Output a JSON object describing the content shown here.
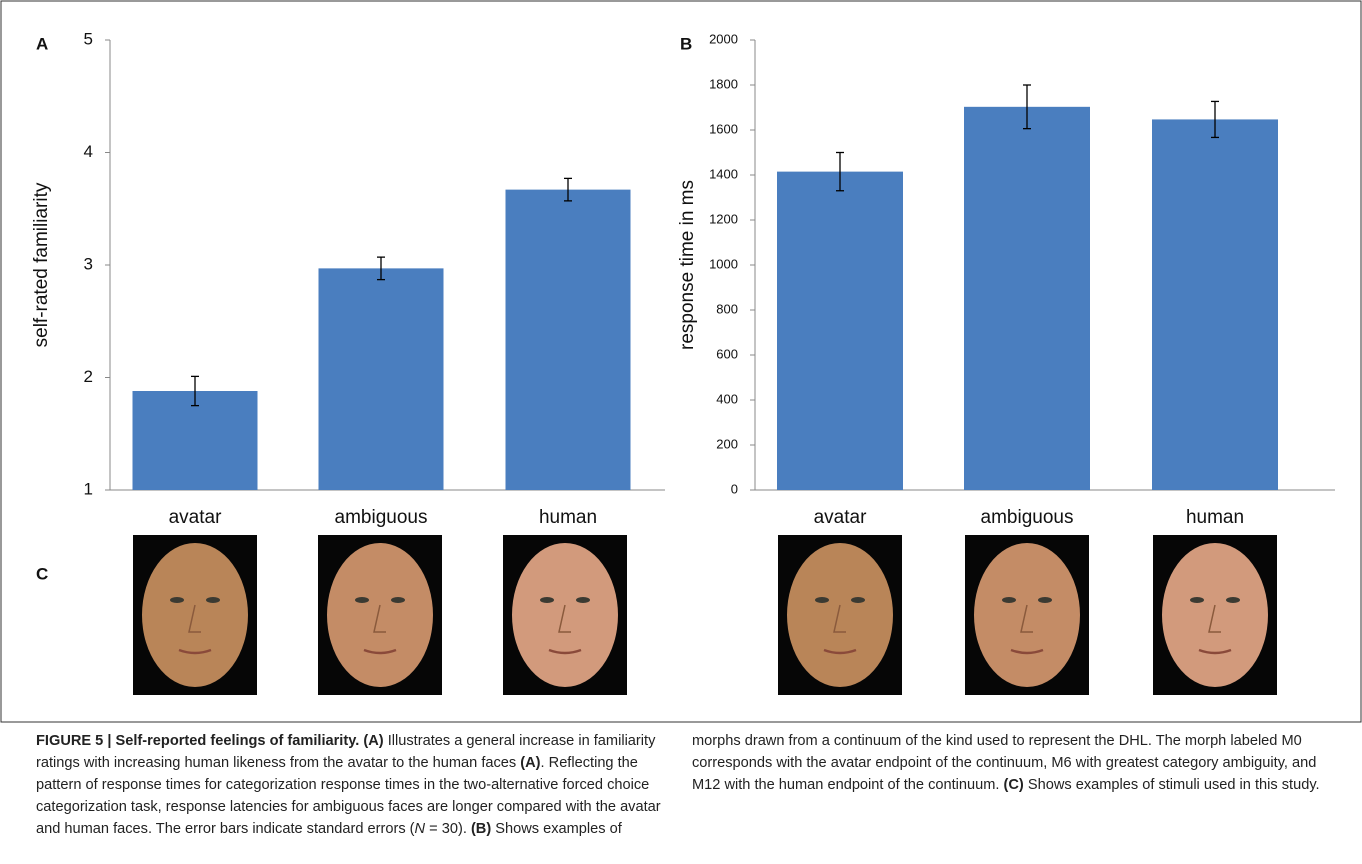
{
  "chart_data": [
    {
      "type": "bar",
      "panel": "A",
      "y_label": "self-rated familiarity",
      "categories": [
        "avatar",
        "ambiguous",
        "human"
      ],
      "values": [
        1.88,
        2.97,
        3.67
      ],
      "errors": [
        0.13,
        0.1,
        0.1
      ],
      "color": "#4a7ebf",
      "ylim": [
        1,
        5
      ],
      "yticks": [
        1,
        2,
        3,
        4,
        5
      ]
    },
    {
      "type": "bar",
      "panel": "B",
      "y_label": "response time in ms",
      "categories": [
        "avatar",
        "ambiguous",
        "human"
      ],
      "values": [
        1415,
        1703,
        1647
      ],
      "errors": [
        85,
        97,
        80
      ],
      "color": "#4a7ebf",
      "ylim": [
        0,
        2000
      ],
      "yticks": [
        0,
        200,
        400,
        600,
        800,
        1000,
        1200,
        1400,
        1600,
        1800,
        2000
      ]
    }
  ],
  "panel_c": "C",
  "caption": [
    {
      "text": "FIGURE 5 | Self-reported feelings of familiarity.",
      "style": "bold"
    },
    {
      "text": " ",
      "style": "normal"
    },
    {
      "text": "(A)",
      "style": "bold"
    },
    {
      "text": " Illustrates a general increase in familiarity ratings with increasing human likeness from the avatar to the human faces ",
      "style": "normal"
    },
    {
      "text": "(A)",
      "style": "bold"
    },
    {
      "text": ". Reflecting the pattern of response times for categorization response times in the two-alternative forced choice categorization task, response latencies for ambiguous faces are longer compared with the avatar and human faces. The error bars indicate standard errors (",
      "style": "normal"
    },
    {
      "text": "N",
      "style": "italic"
    },
    {
      "text": " = 30). ",
      "style": "normal"
    },
    {
      "text": "(B)",
      "style": "bold"
    },
    {
      "text": " Shows examples of morphs drawn from a continuum of the kind used to represent the DHL. The morph labeled M0 corresponds with the avatar endpoint of the continuum, M6 with greatest category ambiguity, and M12 with the human endpoint of the continuum. ",
      "style": "normal"
    },
    {
      "text": "(C)",
      "style": "bold"
    },
    {
      "text": " Shows examples of stimuli used in this study.",
      "style": "normal"
    }
  ]
}
